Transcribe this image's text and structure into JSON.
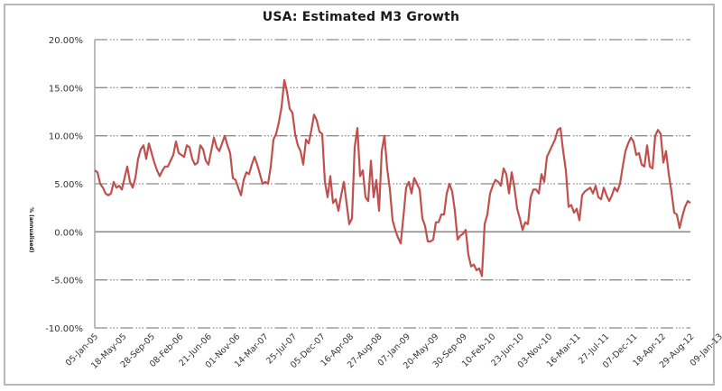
{
  "chart_data": {
    "type": "line",
    "title": "USA: Estimated M3 Growth",
    "xlabel": "",
    "ylabel": "% (annualised)",
    "ylim": [
      -10,
      20
    ],
    "yticks": [
      "20.00%",
      "15.00%",
      "10.00%",
      "5.00%",
      "0.00%",
      "-5.00%",
      "-10.00%"
    ],
    "ytick_values": [
      20,
      15,
      10,
      5,
      0,
      -5,
      -10
    ],
    "xticks": [
      "05-Jan-05",
      "18-May-05",
      "28-Sep-05",
      "08-Feb-06",
      "21-Jun-06",
      "01-Nov-06",
      "14-Mar-07",
      "25-Jul-07",
      "05-Dec-07",
      "16-Apr-08",
      "27-Aug-08",
      "07-Jan-09",
      "20-May-09",
      "30-Sep-09",
      "10-Feb-10",
      "23-Jun-10",
      "03-Nov-10",
      "16-Mar-11",
      "27-Jul-11",
      "07-Dec-11",
      "18-Apr-12",
      "29-Aug-12",
      "09-Jan-13"
    ],
    "grid": true,
    "legend": "none",
    "series": [
      {
        "name": "Estimated M3 Growth",
        "color": "#c0504d",
        "x_index_range": [
          0,
          23.0
        ],
        "values": [
          6.4,
          6.2,
          5.0,
          4.6,
          4.0,
          3.8,
          4.0,
          5.2,
          4.6,
          4.8,
          4.4,
          5.6,
          6.8,
          5.2,
          4.6,
          5.6,
          7.6,
          8.6,
          9.0,
          7.6,
          9.2,
          8.2,
          7.2,
          6.4,
          5.8,
          6.4,
          6.8,
          6.8,
          7.4,
          8.0,
          9.4,
          8.2,
          8.0,
          7.8,
          9.0,
          8.8,
          7.6,
          7.0,
          7.2,
          9.0,
          8.6,
          7.4,
          7.0,
          8.4,
          9.8,
          8.8,
          8.4,
          9.2,
          10.0,
          9.0,
          8.2,
          5.6,
          5.4,
          4.6,
          3.8,
          5.4,
          6.2,
          6.0,
          7.0,
          7.8,
          7.0,
          6.0,
          5.0,
          5.2,
          5.0,
          6.8,
          9.6,
          10.2,
          11.4,
          13.0,
          15.8,
          14.6,
          12.8,
          12.4,
          10.2,
          9.0,
          8.4,
          7.0,
          9.6,
          9.2,
          10.6,
          12.2,
          11.6,
          10.4,
          10.2,
          5.2,
          3.6,
          5.8,
          3.0,
          3.4,
          2.2,
          3.8,
          5.2,
          3.0,
          0.8,
          1.4,
          8.8,
          10.8,
          5.8,
          6.4,
          3.6,
          3.2,
          7.4,
          3.6,
          5.4,
          2.2,
          8.4,
          10.0,
          6.6,
          4.4,
          1.2,
          0.2,
          -0.6,
          -1.2,
          1.6,
          4.6,
          5.2,
          4.0,
          5.6,
          5.0,
          4.4,
          1.4,
          0.6,
          -1.0,
          -1.0,
          -0.8,
          1.0,
          1.0,
          1.8,
          1.8,
          4.0,
          5.0,
          4.2,
          2.2,
          -0.8,
          -0.4,
          -0.2,
          0.2,
          -2.4,
          -3.6,
          -3.4,
          -4.0,
          -3.8,
          -4.6,
          0.8,
          1.8,
          4.0,
          4.8,
          5.4,
          5.2,
          4.8,
          6.6,
          6.0,
          4.0,
          6.2,
          4.6,
          2.4,
          1.4,
          0.2,
          1.0,
          0.8,
          3.6,
          4.4,
          4.4,
          4.0,
          6.0,
          5.2,
          7.8,
          8.4,
          9.0,
          9.6,
          10.6,
          10.8,
          8.4,
          6.4,
          2.6,
          2.8,
          2.0,
          2.4,
          1.2,
          3.8,
          4.2,
          4.4,
          4.6,
          4.0,
          4.8,
          3.6,
          3.4,
          4.6,
          3.8,
          3.2,
          3.8,
          4.6,
          4.2,
          5.0,
          6.8,
          8.4,
          9.2,
          9.8,
          9.4,
          8.0,
          8.2,
          7.0,
          6.8,
          9.0,
          6.8,
          6.6,
          10.0,
          10.6,
          10.2,
          7.2,
          8.4,
          6.0,
          4.2,
          2.0,
          1.8,
          0.4,
          1.6,
          2.6,
          3.2,
          3.0
        ]
      }
    ]
  }
}
